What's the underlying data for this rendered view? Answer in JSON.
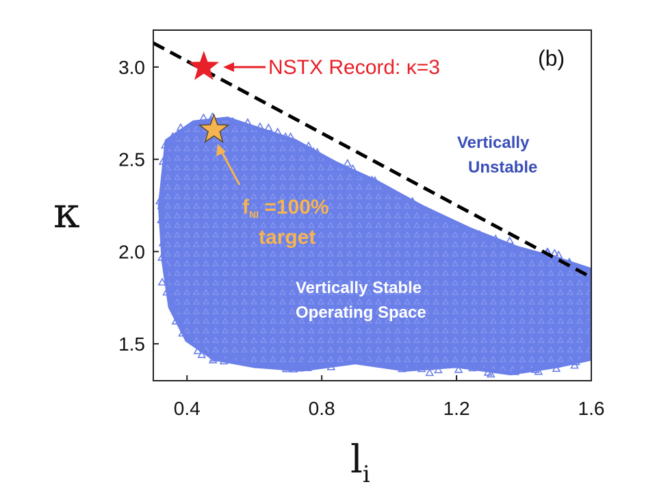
{
  "chart_data": {
    "type": "scatter",
    "panel_label": "(b)",
    "xlabel_base": "l",
    "xlabel_sub": "i",
    "ylabel": "κ",
    "xlim": [
      0.3,
      1.6
    ],
    "ylim": [
      1.3,
      3.2
    ],
    "x_ticks": [
      "0.4",
      "0.8",
      "1.2",
      "1.6"
    ],
    "x_tick_values": [
      0.4,
      0.8,
      1.2,
      1.6
    ],
    "y_ticks": [
      "1.5",
      "2.0",
      "2.5",
      "3.0"
    ],
    "y_tick_values": [
      1.5,
      2.0,
      2.5,
      3.0
    ],
    "boundary_line": {
      "style": "dashed",
      "color": "#000000",
      "points": [
        [
          0.3,
          3.13
        ],
        [
          1.6,
          1.86
        ]
      ]
    },
    "stable_region_outline": [
      [
        0.34,
        2.6
      ],
      [
        0.42,
        2.7
      ],
      [
        0.52,
        2.72
      ],
      [
        0.62,
        2.66
      ],
      [
        0.72,
        2.6
      ],
      [
        0.84,
        2.48
      ],
      [
        0.96,
        2.38
      ],
      [
        1.1,
        2.24
      ],
      [
        1.24,
        2.12
      ],
      [
        1.38,
        2.02
      ],
      [
        1.5,
        1.96
      ],
      [
        1.6,
        1.9
      ],
      [
        1.6,
        1.42
      ],
      [
        1.5,
        1.38
      ],
      [
        1.36,
        1.34
      ],
      [
        1.2,
        1.38
      ],
      [
        1.05,
        1.36
      ],
      [
        0.9,
        1.4
      ],
      [
        0.74,
        1.36
      ],
      [
        0.6,
        1.38
      ],
      [
        0.48,
        1.42
      ],
      [
        0.4,
        1.52
      ],
      [
        0.35,
        1.7
      ],
      [
        0.33,
        1.95
      ],
      [
        0.32,
        2.25
      ]
    ],
    "region_color": "#6b7fe8",
    "markers": [
      {
        "name": "NSTX Record",
        "x": 0.45,
        "y": 3.0,
        "symbol": "star",
        "color": "#e8202a"
      },
      {
        "name": "target",
        "x": 0.48,
        "y": 2.66,
        "symbol": "star",
        "color": "#f5b450"
      }
    ],
    "annotations": {
      "record": "NSTX Record: κ=3",
      "unstable_line1": "Vertically",
      "unstable_line2": "Unstable",
      "stable_line1": "Vertically Stable",
      "stable_line2": "Operating Space",
      "target_f": "f",
      "target_sub": "NI",
      "target_val": " =100%",
      "target_line2": "target"
    }
  }
}
